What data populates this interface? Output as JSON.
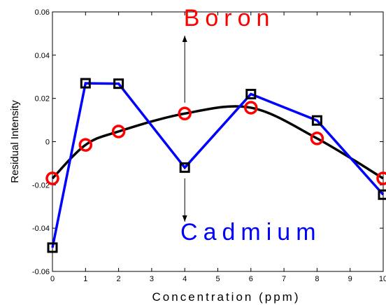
{
  "chart_data": {
    "type": "line",
    "xlabel": "Concentration (ppm)",
    "ylabel": "Residual Intensity",
    "xlim": [
      0,
      10
    ],
    "ylim": [
      -0.06,
      0.06
    ],
    "xticks": [
      0,
      1,
      2,
      3,
      4,
      5,
      6,
      7,
      8,
      9,
      10
    ],
    "yticks": [
      -0.06,
      -0.04,
      -0.02,
      0,
      0.02,
      0.04,
      0.06
    ],
    "ytick_labels": [
      "-0.06",
      "-0.04",
      "-0.02",
      "0",
      "0.02",
      "0.04",
      "0.06"
    ],
    "grid": false,
    "series": [
      {
        "name": "Cadmium",
        "line_color": "#0000ff",
        "marker": "square",
        "marker_color": "#000000",
        "x": [
          0,
          1,
          2,
          4,
          6,
          8,
          10
        ],
        "y": [
          -0.049,
          0.027,
          0.0268,
          -0.012,
          0.022,
          0.0098,
          -0.0245
        ]
      },
      {
        "name": "Boron",
        "line_color": "#000000",
        "marker": "circle",
        "marker_color": "#ff0000",
        "x": [
          0,
          1,
          2,
          4,
          6,
          8,
          10
        ],
        "y": [
          -0.017,
          -0.0015,
          0.0047,
          0.013,
          0.0157,
          0.0015,
          -0.017
        ],
        "smooth": true
      }
    ],
    "annotations": [
      {
        "text": "Boron",
        "color": "#ff0000",
        "x": 5.35,
        "y": 0.0535,
        "arrow_from": [
          4,
          0.018
        ],
        "arrow_to": [
          4,
          0.049
        ]
      },
      {
        "text": "Cadmium",
        "color": "#0000ff",
        "x": 6.0,
        "y": -0.0455,
        "arrow_from": [
          4,
          -0.017
        ],
        "arrow_to": [
          4,
          -0.037
        ]
      }
    ]
  }
}
